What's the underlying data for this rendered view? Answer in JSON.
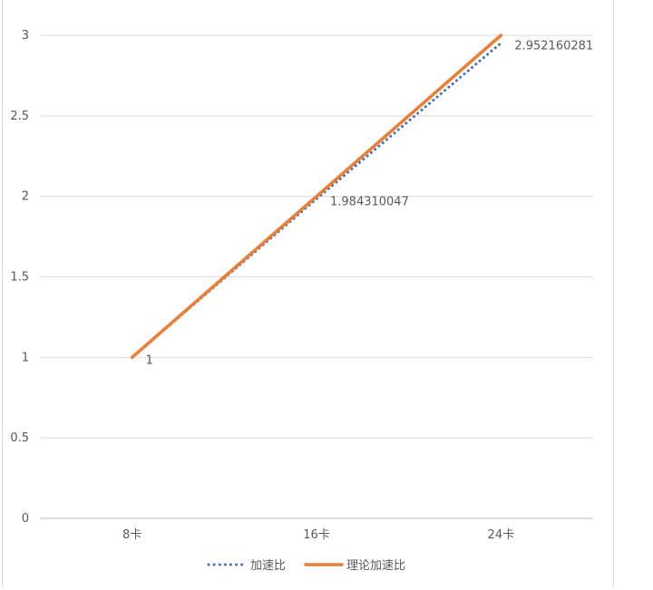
{
  "chart_data": {
    "type": "line",
    "title": "",
    "xlabel": "",
    "ylabel": "",
    "categories": [
      "8卡",
      "16卡",
      "24卡"
    ],
    "y_ticks": [
      "0",
      "0.5",
      "1",
      "1.5",
      "2",
      "2.5",
      "3"
    ],
    "ylim": [
      0,
      3
    ],
    "grid": true,
    "legend_position": "bottom",
    "series": [
      {
        "name": "加速比",
        "values": [
          1,
          1.984310047,
          2.952160281
        ],
        "data_labels": [
          "1",
          "1.984310047",
          "2.952160281"
        ],
        "color": "#4472c4",
        "style": "dotted"
      },
      {
        "name": "理论加速比",
        "values": [
          1,
          2,
          3
        ],
        "color": "#ed7d31",
        "style": "solid"
      }
    ]
  }
}
